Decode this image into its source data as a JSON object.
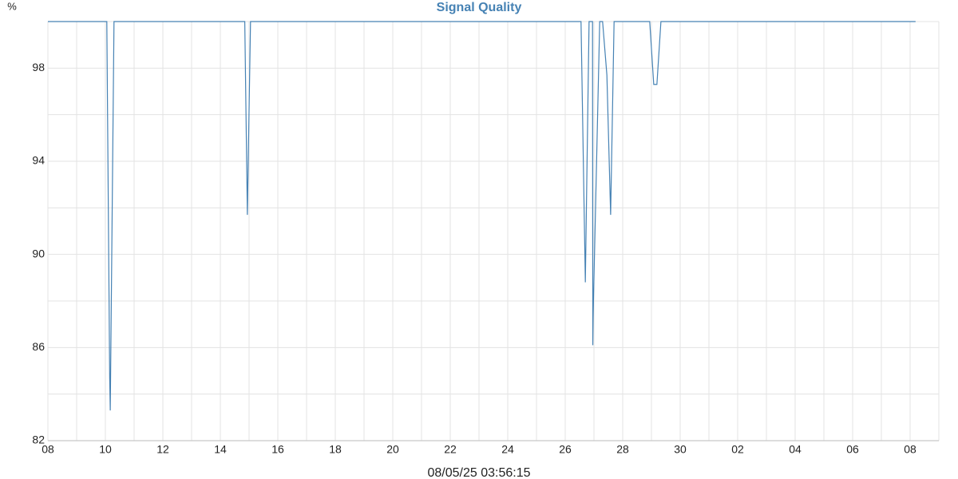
{
  "chart_data": {
    "type": "line",
    "title": "Signal Quality",
    "y_label": "%",
    "x_label": "08/05/25 03:56:15",
    "x": [
      0,
      2.05,
      2.15,
      2.17,
      2.3,
      6.85,
      6.94,
      7.05,
      18.55,
      18.7,
      18.83,
      18.95,
      18.96,
      18.97,
      19.2,
      19.3,
      19.45,
      19.58,
      19.7,
      20.94,
      21.08,
      21.19,
      21.33,
      30.19
    ],
    "series": [
      {
        "name": "Signal Quality",
        "color": "#4682b4",
        "values": [
          100,
          100,
          84.7,
          83.3,
          100,
          100,
          91.7,
          100,
          100,
          88.8,
          100,
          100,
          86.1,
          87.3,
          100,
          100,
          97.7,
          91.7,
          100,
          100,
          97.3,
          97.3,
          100,
          100
        ]
      }
    ],
    "xlim": [
      0,
      31
    ],
    "xticks": [
      {
        "value": 0,
        "label": "08"
      },
      {
        "value": 2,
        "label": "10"
      },
      {
        "value": 4,
        "label": "12"
      },
      {
        "value": 6,
        "label": "14"
      },
      {
        "value": 8,
        "label": "16"
      },
      {
        "value": 10,
        "label": "18"
      },
      {
        "value": 12,
        "label": "20"
      },
      {
        "value": 14,
        "label": "22"
      },
      {
        "value": 16,
        "label": "24"
      },
      {
        "value": 18,
        "label": "26"
      },
      {
        "value": 20,
        "label": "28"
      },
      {
        "value": 22,
        "label": "30"
      },
      {
        "value": 24,
        "label": "02"
      },
      {
        "value": 26,
        "label": "04"
      },
      {
        "value": 28,
        "label": "06"
      },
      {
        "value": 30,
        "label": "08"
      }
    ],
    "xminorticks": [
      1,
      3,
      5,
      7,
      9,
      11,
      13,
      15,
      17,
      19,
      21,
      23,
      25,
      27,
      29,
      31
    ],
    "ylim": [
      82,
      100
    ],
    "yticks": [
      82,
      86,
      90,
      94,
      98
    ],
    "yminorticks": [
      84,
      88,
      92,
      96,
      100
    ],
    "grid": true
  }
}
